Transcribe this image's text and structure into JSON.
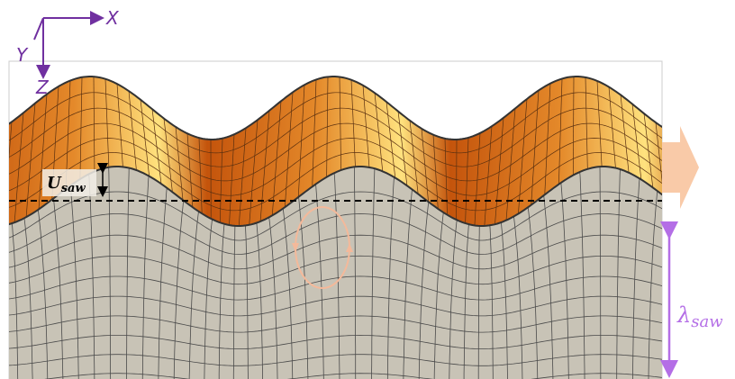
{
  "axes": {
    "x": "X",
    "y": "Y",
    "z": "Z"
  },
  "labels": {
    "amplitude_symbol": "U",
    "amplitude_subscript": "saw",
    "wavelength_symbol": "λ",
    "wavelength_subscript": "saw"
  }
}
